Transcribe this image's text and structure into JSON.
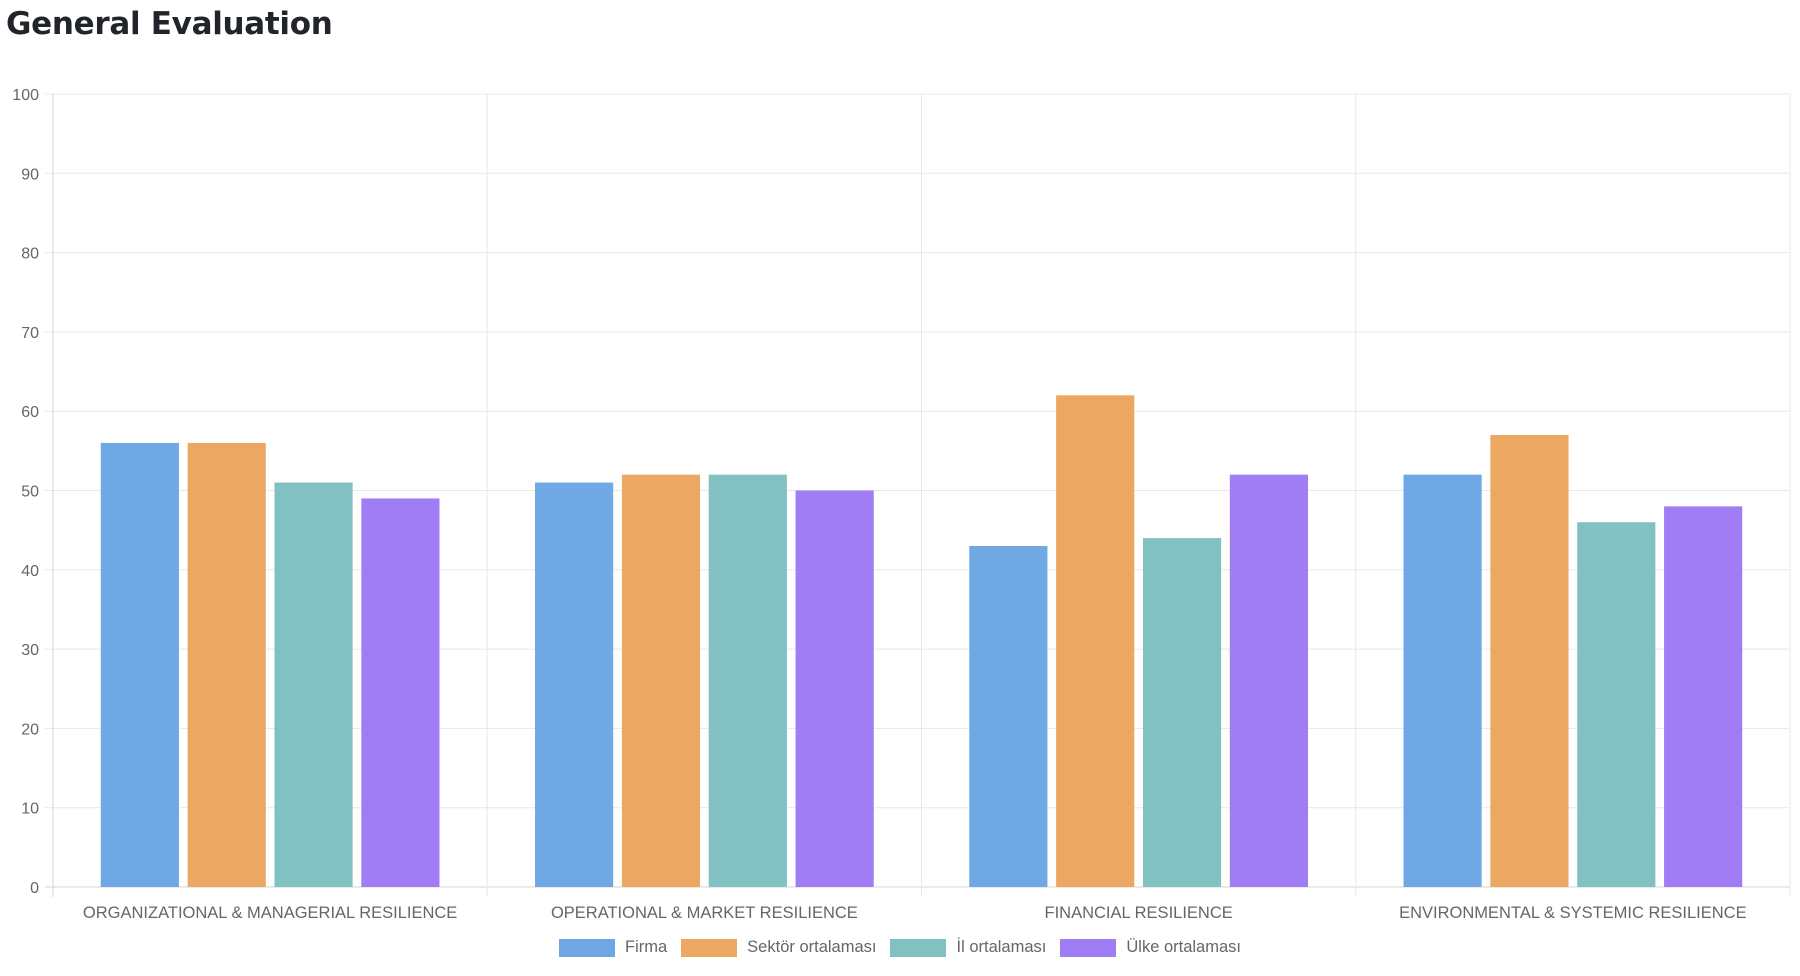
{
  "header": {
    "title": "General Evaluation"
  },
  "chart_data": {
    "type": "bar",
    "title": "General Evaluation",
    "xlabel": "",
    "ylabel": "",
    "ylim": [
      0,
      100
    ],
    "yticks": [
      0,
      10,
      20,
      30,
      40,
      50,
      60,
      70,
      80,
      90,
      100
    ],
    "grid": true,
    "legend_position": "bottom",
    "categories": [
      "ORGANIZATIONAL & MANAGERIAL RESILIENCE",
      "OPERATIONAL & MARKET RESILIENCE",
      "FINANCIAL RESILIENCE",
      "ENVIRONMENTAL & SYSTEMIC RESILIENCE"
    ],
    "series": [
      {
        "name": "Firma",
        "color": "#6fa8e4",
        "values": [
          56,
          51,
          43,
          52
        ]
      },
      {
        "name": "Sektör ortalaması",
        "color": "#eca862",
        "values": [
          56,
          52,
          62,
          57
        ]
      },
      {
        "name": "İl ortalaması",
        "color": "#82c1c2",
        "values": [
          51,
          52,
          44,
          46
        ]
      },
      {
        "name": "Ülke ortalaması",
        "color": "#a07cf5",
        "values": [
          49,
          50,
          52,
          48
        ]
      }
    ]
  }
}
